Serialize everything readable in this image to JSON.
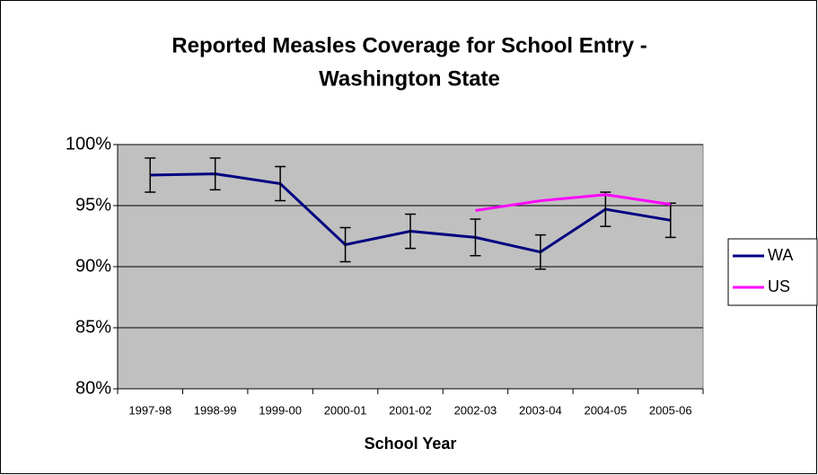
{
  "chart_data": {
    "type": "line",
    "title": [
      "Reported Measles Coverage for School Entry -",
      "Washington State"
    ],
    "x_label": "School Year",
    "categories": [
      "1997-98",
      "1998-99",
      "1999-00",
      "2000-01",
      "2001-02",
      "2002-03",
      "2003-04",
      "2004-05",
      "2005-06"
    ],
    "series": [
      {
        "name": "WA",
        "color": "#000080",
        "values": [
          97.5,
          97.6,
          96.8,
          91.8,
          92.9,
          92.4,
          91.2,
          94.7,
          93.8
        ],
        "errors": [
          1.4,
          1.3,
          1.4,
          1.4,
          1.4,
          1.5,
          1.4,
          1.4,
          1.4
        ]
      },
      {
        "name": "US",
        "color": "#ff00ff",
        "values": [
          null,
          null,
          null,
          null,
          null,
          94.6,
          95.4,
          95.9,
          95.1
        ]
      }
    ],
    "ylim": [
      80,
      100
    ],
    "yticks": [
      {
        "value": 80,
        "label": "80%"
      },
      {
        "value": 85,
        "label": "85%"
      },
      {
        "value": 90,
        "label": "90%"
      },
      {
        "value": 95,
        "label": "95%"
      },
      {
        "value": 100,
        "label": "100%"
      }
    ],
    "grid": true,
    "plot_background": "#c0c0c0",
    "legend": "right"
  }
}
